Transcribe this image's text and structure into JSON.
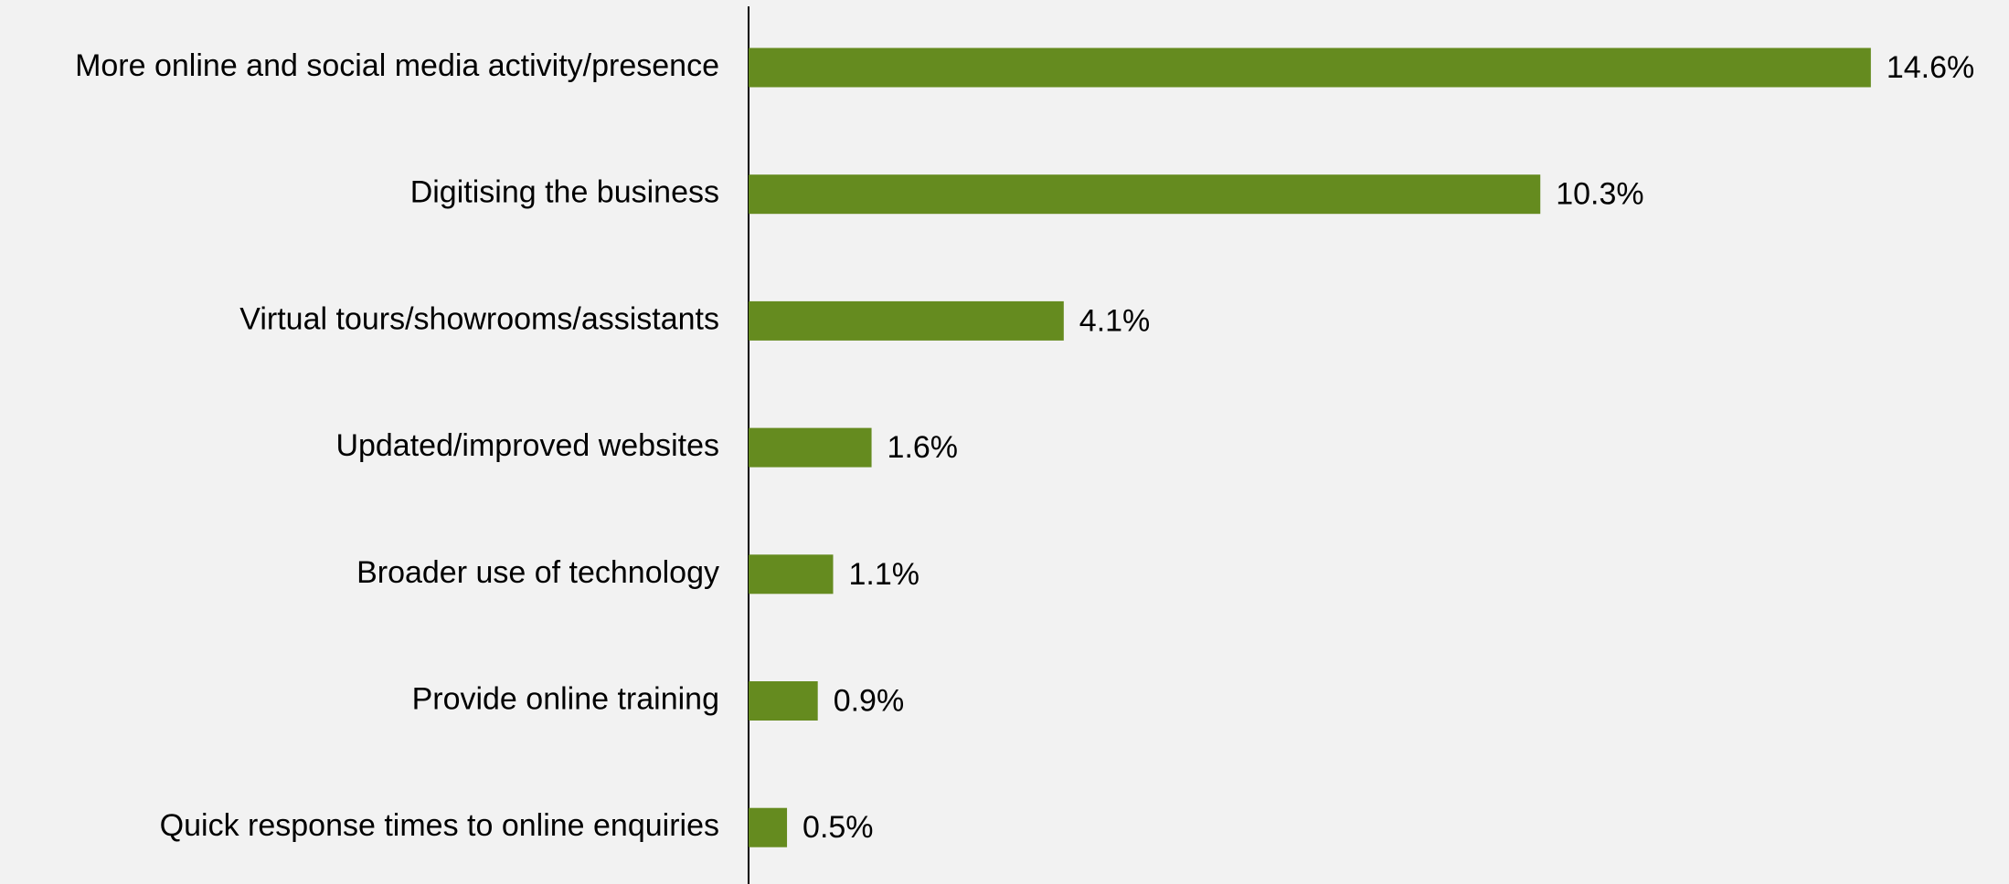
{
  "chart_data": {
    "type": "hbar",
    "categories": [
      "More online and social media activity/presence",
      "Digitising the business",
      "Virtual tours/showrooms/assistants",
      "Updated/improved websites",
      "Broader use of technology",
      "Provide online training",
      "Quick response times to online enquiries"
    ],
    "values": [
      14.6,
      10.3,
      4.1,
      1.6,
      1.1,
      0.9,
      0.5
    ],
    "value_labels": [
      "14.6%",
      "10.3%",
      "4.1%",
      "1.6%",
      "1.1%",
      "0.9%",
      "0.5%"
    ],
    "color": "#658b1f"
  }
}
